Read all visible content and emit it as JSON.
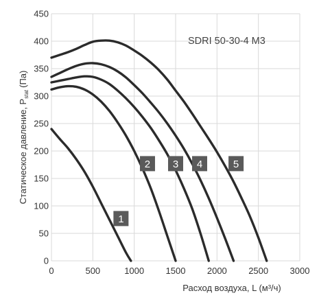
{
  "chart_data": {
    "type": "line",
    "title": "SDRI 50-30-4 M3",
    "xlabel": "Расход воздуха, L (м³/ч)",
    "ylabel": "Статическое давление, P",
    "ylabel_subscript": "stat",
    "ylabel_unit": "(Па)",
    "xlim": [
      0,
      3000
    ],
    "ylim": [
      0,
      450
    ],
    "x_ticks": [
      0,
      500,
      1000,
      1500,
      2000,
      2500,
      3000
    ],
    "y_ticks": [
      0,
      50,
      100,
      150,
      200,
      250,
      300,
      350,
      400,
      450
    ],
    "grid": true,
    "series": [
      {
        "name": "1",
        "x": [
          0,
          100,
          200,
          300,
          400,
          500,
          600,
          700,
          800,
          900,
          960
        ],
        "y": [
          240,
          222,
          205,
          185,
          162,
          135,
          105,
          75,
          45,
          15,
          0
        ]
      },
      {
        "name": "2",
        "x": [
          0,
          100,
          200,
          300,
          400,
          500,
          600,
          700,
          800,
          900,
          1000,
          1100,
          1200,
          1300,
          1400,
          1500
        ],
        "y": [
          312,
          316,
          318,
          317,
          312,
          303,
          290,
          273,
          252,
          228,
          200,
          168,
          132,
          90,
          45,
          0
        ]
      },
      {
        "name": "3",
        "x": [
          0,
          100,
          200,
          300,
          400,
          500,
          600,
          700,
          800,
          900,
          1000,
          1100,
          1200,
          1300,
          1400,
          1500,
          1600,
          1700,
          1800,
          1900
        ],
        "y": [
          325,
          328,
          331,
          334,
          336,
          335,
          330,
          322,
          310,
          296,
          280,
          262,
          242,
          219,
          194,
          165,
          132,
          95,
          50,
          0
        ]
      },
      {
        "name": "4",
        "x": [
          0,
          100,
          200,
          300,
          400,
          500,
          600,
          700,
          800,
          900,
          1000,
          1100,
          1200,
          1300,
          1400,
          1500,
          1600,
          1700,
          1800,
          1900,
          2000,
          2100,
          2200
        ],
        "y": [
          335,
          342,
          349,
          355,
          359,
          360,
          358,
          353,
          345,
          334,
          320,
          305,
          288,
          270,
          250,
          228,
          204,
          177,
          147,
          114,
          78,
          40,
          0
        ]
      },
      {
        "name": "5",
        "x": [
          0,
          100,
          200,
          300,
          400,
          500,
          600,
          700,
          800,
          900,
          1000,
          1100,
          1200,
          1300,
          1400,
          1500,
          1600,
          1700,
          1800,
          1900,
          2000,
          2100,
          2200,
          2300,
          2400,
          2500,
          2600
        ],
        "y": [
          370,
          375,
          380,
          386,
          393,
          399,
          401,
          401,
          398,
          392,
          383,
          373,
          361,
          347,
          330,
          310,
          290,
          268,
          245,
          222,
          198,
          172,
          144,
          113,
          80,
          42,
          0
        ]
      }
    ],
    "annotations": [
      {
        "text": "1",
        "x": 840,
        "y": 77
      },
      {
        "text": "2",
        "x": 1160,
        "y": 177
      },
      {
        "text": "3",
        "x": 1500,
        "y": 177
      },
      {
        "text": "4",
        "x": 1790,
        "y": 177
      },
      {
        "text": "5",
        "x": 2230,
        "y": 177
      }
    ]
  }
}
